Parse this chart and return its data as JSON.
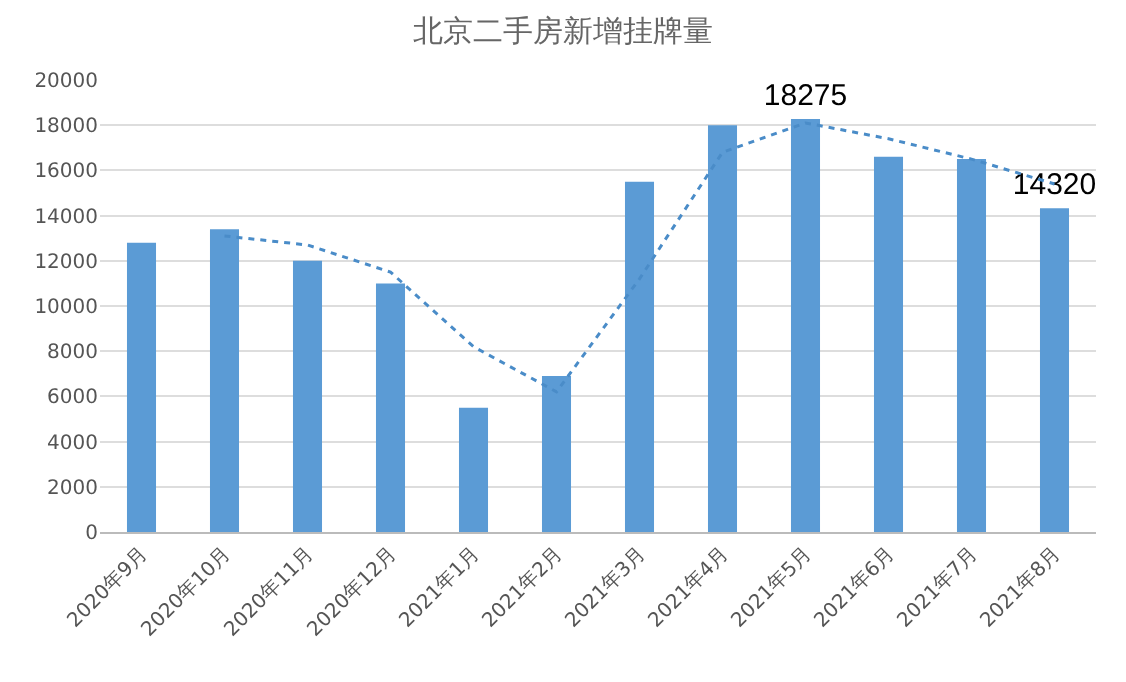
{
  "chart_data": {
    "type": "bar",
    "title": "北京二手房新增挂牌量",
    "categories": [
      "2020年9月",
      "2020年10月",
      "2020年11月",
      "2020年12月",
      "2021年1月",
      "2021年2月",
      "2021年3月",
      "2021年4月",
      "2021年5月",
      "2021年6月",
      "2021年7月",
      "2021年8月"
    ],
    "series": [
      {
        "color": "#5b9bd5",
        "values": [
          12800,
          13400,
          12000,
          11000,
          5500,
          6900,
          15500,
          18000,
          18275,
          16600,
          16500,
          14320
        ],
        "value_labels": [
          null,
          null,
          null,
          null,
          null,
          null,
          null,
          null,
          "18275",
          null,
          null,
          "14320"
        ]
      },
      {
        "type": "line",
        "color": "#4a8cc8",
        "line_style": "dotted",
        "values": [
          null,
          13100,
          12700,
          11500,
          8200,
          6200,
          11200,
          16800,
          18100,
          17400,
          16500,
          15400
        ]
      }
    ],
    "ylim": [
      0,
      20000
    ],
    "yticks": [
      0,
      2000,
      4000,
      6000,
      8000,
      10000,
      12000,
      14000,
      16000,
      18000,
      20000
    ],
    "grid": "y"
  }
}
